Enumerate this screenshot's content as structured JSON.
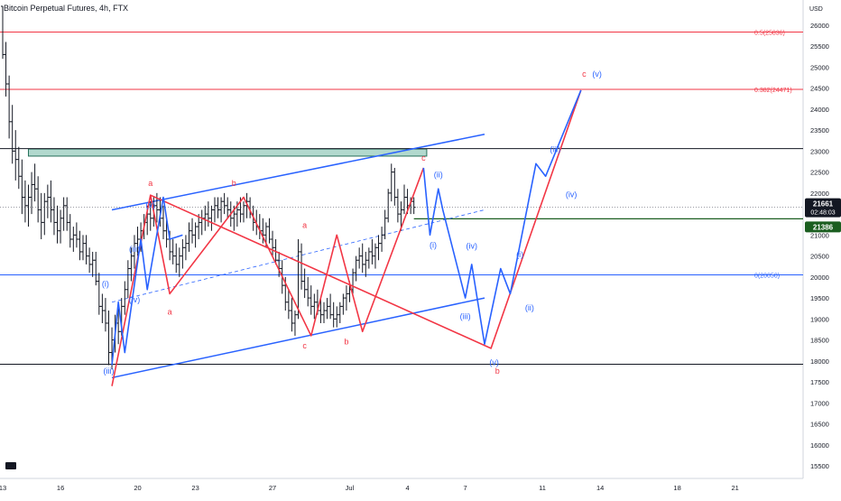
{
  "chart_data": {
    "type": "line",
    "title": "Bitcoin Perpetual Futures, 4h, FTX",
    "currency": "USD",
    "y_range": [
      15200,
      26600
    ],
    "y_ticks": [
      15500,
      16000,
      16500,
      17000,
      17500,
      18000,
      18500,
      19000,
      19500,
      20000,
      20500,
      21000,
      21500,
      22000,
      22500,
      23000,
      23500,
      24000,
      24500,
      25000,
      25500,
      26000
    ],
    "x_range": [
      0,
      90
    ],
    "x_ticks": [
      {
        "label": "13",
        "t": 0
      },
      {
        "label": "16",
        "t": 9
      },
      {
        "label": "20",
        "t": 21
      },
      {
        "label": "23",
        "t": 30
      },
      {
        "label": "27",
        "t": 42
      },
      {
        "label": "Jul",
        "t": 54
      },
      {
        "label": "4",
        "t": 63
      },
      {
        "label": "7",
        "t": 72
      },
      {
        "label": "11",
        "t": 84
      },
      {
        "label": "14",
        "t": 93
      },
      {
        "label": "18",
        "t": 105
      },
      {
        "label": "21",
        "t": 114
      }
    ],
    "colors": {
      "red": "#f23645",
      "blue": "#2962ff",
      "black": "#131722",
      "up_candle": "#131722",
      "down_candle": "#131722",
      "zone_fill": "#7fbfae",
      "zone_border": "#26705a",
      "green_line": "#1b5e20",
      "price_label_bg": "#131722",
      "green_label_bg": "#1b5e20"
    },
    "horizontal_levels": [
      {
        "price": 25836,
        "color": "red",
        "label": "0.5(25836)"
      },
      {
        "price": 24471,
        "color": "red",
        "label": "0.382(24471)"
      },
      {
        "price": 23060,
        "color": "black",
        "label": ""
      },
      {
        "price": 20050,
        "color": "blue",
        "label": "0(20050)"
      },
      {
        "price": 17920,
        "color": "black",
        "label": ""
      }
    ],
    "current_price": {
      "price": 21661,
      "label": "21661",
      "countdown": "02:48:03"
    },
    "green_level": {
      "price": 21386,
      "label": "21386"
    },
    "supply_zone": {
      "low": 22880,
      "high": 23050
    },
    "candles": [
      [
        0,
        26450,
        26450,
        25200,
        25300
      ],
      [
        0.5,
        25300,
        25600,
        24300,
        24600
      ],
      [
        1,
        24600,
        24800,
        23300,
        23700
      ],
      [
        1.5,
        23700,
        24100,
        22700,
        23000
      ],
      [
        2,
        23000,
        23500,
        22300,
        22800
      ],
      [
        2.5,
        22800,
        23100,
        22100,
        22400
      ],
      [
        3,
        22400,
        22800,
        21500,
        21900
      ],
      [
        3.5,
        21900,
        22300,
        21300,
        21700
      ],
      [
        4,
        21700,
        22200,
        21200,
        21900
      ],
      [
        4.5,
        21900,
        22500,
        21500,
        22200
      ],
      [
        5,
        22200,
        22700,
        21800,
        22100
      ],
      [
        5.5,
        22100,
        22400,
        21300,
        21600
      ],
      [
        6,
        21600,
        22000,
        20900,
        21300
      ],
      [
        6.5,
        21300,
        22000,
        21000,
        21800
      ],
      [
        7,
        21800,
        22200,
        21400,
        21900
      ],
      [
        7.5,
        21900,
        22300,
        21300,
        21600
      ],
      [
        8,
        21600,
        21900,
        21000,
        21300
      ],
      [
        8.5,
        21300,
        21700,
        20800,
        21100
      ],
      [
        9,
        21100,
        21600,
        20800,
        21400
      ],
      [
        9.5,
        21400,
        21900,
        21100,
        21700
      ],
      [
        10,
        21700,
        21900,
        21100,
        21300
      ],
      [
        10.5,
        21300,
        21500,
        20700,
        20900
      ],
      [
        11,
        20900,
        21200,
        20600,
        21000
      ],
      [
        11.5,
        21000,
        21300,
        20700,
        20900
      ],
      [
        12,
        20900,
        21100,
        20400,
        20600
      ],
      [
        12.5,
        20600,
        21000,
        20400,
        20800
      ],
      [
        13,
        20800,
        21000,
        20300,
        20500
      ],
      [
        13.5,
        20500,
        20700,
        20100,
        20300
      ],
      [
        14,
        20300,
        20600,
        20000,
        20400
      ],
      [
        14.5,
        20400,
        20600,
        19800,
        19900
      ],
      [
        15,
        19900,
        20100,
        19100,
        19300
      ],
      [
        15.5,
        19300,
        19600,
        18900,
        19200
      ],
      [
        16,
        19200,
        19500,
        18700,
        18900
      ],
      [
        16.5,
        18900,
        19200,
        17900,
        18200
      ],
      [
        17,
        18200,
        18800,
        17800,
        18500
      ],
      [
        17.5,
        18500,
        19100,
        18200,
        18900
      ],
      [
        18,
        18900,
        19300,
        18400,
        18700
      ],
      [
        18.5,
        18700,
        19500,
        18600,
        19300
      ],
      [
        19,
        19300,
        19900,
        19100,
        19700
      ],
      [
        19.5,
        19700,
        20400,
        19500,
        20200
      ],
      [
        20,
        20200,
        20700,
        19900,
        20500
      ],
      [
        20.5,
        20500,
        21000,
        20200,
        20800
      ],
      [
        21,
        20800,
        21200,
        20500,
        20900
      ],
      [
        21.5,
        20900,
        21300,
        20600,
        21100
      ],
      [
        22,
        21100,
        21500,
        20900,
        21300
      ],
      [
        22.5,
        21300,
        21700,
        21000,
        21500
      ],
      [
        23,
        21500,
        21800,
        21100,
        21400
      ],
      [
        23.5,
        21400,
        21900,
        21200,
        21700
      ],
      [
        24,
        21700,
        22000,
        21300,
        21600
      ],
      [
        24.5,
        21600,
        21900,
        21200,
        21400
      ],
      [
        25,
        21400,
        21700,
        20900,
        21100
      ],
      [
        25.5,
        21100,
        21400,
        20700,
        20900
      ],
      [
        26,
        20900,
        21100,
        20400,
        20600
      ],
      [
        26.5,
        20600,
        20900,
        20300,
        20500
      ],
      [
        27,
        20500,
        20800,
        20100,
        20300
      ],
      [
        27.5,
        20300,
        20700,
        20000,
        20500
      ],
      [
        28,
        20500,
        20900,
        20200,
        20700
      ],
      [
        28.5,
        20700,
        21000,
        20400,
        20800
      ],
      [
        29,
        20800,
        21300,
        20600,
        21100
      ],
      [
        29.5,
        21100,
        21400,
        20800,
        21000
      ],
      [
        30,
        21000,
        21300,
        20700,
        21200
      ],
      [
        30.5,
        21200,
        21500,
        20900,
        21300
      ],
      [
        31,
        21300,
        21600,
        21000,
        21400
      ],
      [
        31.5,
        21400,
        21700,
        21100,
        21500
      ],
      [
        32,
        21500,
        21800,
        21200,
        21400
      ],
      [
        32.5,
        21400,
        21700,
        21100,
        21600
      ],
      [
        33,
        21600,
        21900,
        21300,
        21700
      ],
      [
        33.5,
        21700,
        21900,
        21400,
        21600
      ],
      [
        34,
        21600,
        21900,
        21300,
        21800
      ],
      [
        34.5,
        21800,
        22000,
        21500,
        21700
      ],
      [
        35,
        21700,
        21900,
        21400,
        21600
      ],
      [
        35.5,
        21600,
        21800,
        21200,
        21400
      ],
      [
        36,
        21400,
        21700,
        21100,
        21500
      ],
      [
        36.5,
        21500,
        21800,
        21200,
        21600
      ],
      [
        37,
        21600,
        21900,
        21300,
        21500
      ],
      [
        37.5,
        21500,
        21800,
        21300,
        21700
      ],
      [
        38,
        21700,
        22000,
        21400,
        21800
      ],
      [
        38.5,
        21800,
        21900,
        21400,
        21500
      ],
      [
        39,
        21500,
        21700,
        21100,
        21300
      ],
      [
        39.5,
        21300,
        21600,
        21000,
        21200
      ],
      [
        40,
        21200,
        21500,
        20900,
        21100
      ],
      [
        40.5,
        21100,
        21400,
        20800,
        21000
      ],
      [
        41,
        21000,
        21300,
        20700,
        21200
      ],
      [
        41.5,
        21200,
        21400,
        20800,
        20900
      ],
      [
        42,
        20900,
        21100,
        20500,
        20700
      ],
      [
        42.5,
        20700,
        20900,
        20300,
        20400
      ],
      [
        43,
        20400,
        20600,
        20000,
        20200
      ],
      [
        43.5,
        20200,
        20400,
        19600,
        19800
      ],
      [
        44,
        19800,
        20000,
        19200,
        19400
      ],
      [
        44.5,
        19400,
        19700,
        19000,
        19200
      ],
      [
        45,
        19200,
        19500,
        18700,
        18900
      ],
      [
        45.5,
        18900,
        19200,
        18600,
        19100
      ],
      [
        46,
        19100,
        20900,
        19000,
        20600
      ],
      [
        46.5,
        20600,
        20800,
        19700,
        19900
      ],
      [
        47,
        19900,
        20200,
        19500,
        19700
      ],
      [
        47.5,
        19700,
        20000,
        19300,
        19500
      ],
      [
        48,
        19500,
        19800,
        19100,
        19300
      ],
      [
        48.5,
        19300,
        19600,
        19000,
        19400
      ],
      [
        49,
        19400,
        19700,
        19100,
        19200
      ],
      [
        49.5,
        19200,
        19500,
        18900,
        19100
      ],
      [
        50,
        19100,
        19400,
        18900,
        19200
      ],
      [
        50.5,
        19200,
        19500,
        19000,
        19300
      ],
      [
        51,
        19300,
        19600,
        19000,
        19100
      ],
      [
        51.5,
        19100,
        19400,
        18800,
        19000
      ],
      [
        52,
        19000,
        19300,
        18800,
        19100
      ],
      [
        52.5,
        19100,
        19400,
        18900,
        19300
      ],
      [
        53,
        19300,
        19600,
        19100,
        19500
      ],
      [
        53.5,
        19500,
        19800,
        19200,
        19600
      ],
      [
        54,
        19600,
        19900,
        19400,
        19700
      ],
      [
        54.5,
        19700,
        20200,
        19600,
        20100
      ],
      [
        55,
        20100,
        20500,
        19900,
        20400
      ],
      [
        55.5,
        20400,
        20700,
        20200,
        20500
      ],
      [
        56,
        20500,
        20800,
        20100,
        20300
      ],
      [
        56.5,
        20300,
        20600,
        20000,
        20400
      ],
      [
        57,
        20400,
        20700,
        20200,
        20600
      ],
      [
        57.5,
        20600,
        20900,
        20300,
        20500
      ],
      [
        58,
        20500,
        20800,
        20200,
        20700
      ],
      [
        58.5,
        20700,
        21000,
        20400,
        20800
      ],
      [
        59,
        20800,
        21200,
        20600,
        21000
      ],
      [
        59.5,
        21000,
        21600,
        20900,
        21400
      ],
      [
        60,
        21400,
        22100,
        21300,
        22000
      ],
      [
        60.5,
        22000,
        22700,
        21800,
        22500
      ],
      [
        61,
        22500,
        22600,
        21700,
        21900
      ],
      [
        61.5,
        21900,
        22100,
        21300,
        21500
      ],
      [
        62,
        21500,
        21800,
        21100,
        21600
      ],
      [
        62.5,
        21600,
        22200,
        21500,
        21900
      ],
      [
        63,
        21900,
        22100,
        21500,
        21700
      ],
      [
        63.5,
        21700,
        21900,
        21500,
        21800
      ],
      [
        64,
        21800,
        21900,
        21500,
        21660
      ]
    ],
    "red_structure": [
      {
        "points": [
          [
            17,
            17400
          ],
          [
            23,
            21950
          ],
          [
            26,
            19600
          ],
          [
            37.5,
            21900
          ],
          [
            48,
            18600
          ],
          [
            52,
            21000
          ],
          [
            56,
            18700
          ],
          [
            65.5,
            22600
          ]
        ]
      },
      {
        "points": [
          [
            23,
            21950
          ],
          [
            76,
            18300
          ],
          [
            90,
            24450
          ]
        ]
      }
    ],
    "blue_structure": [
      {
        "points": [
          [
            17,
            17900
          ],
          [
            18,
            19400
          ],
          [
            19,
            18200
          ],
          [
            21.5,
            20900
          ],
          [
            22.5,
            19700
          ],
          [
            25,
            21900
          ],
          [
            26,
            20900
          ],
          [
            28,
            21000
          ]
        ]
      },
      {
        "points": [
          [
            65.5,
            22600
          ],
          [
            66.5,
            21000
          ],
          [
            67.8,
            22100
          ],
          [
            68.5,
            21600
          ],
          [
            72,
            19500
          ],
          [
            73,
            20300
          ],
          [
            75,
            18400
          ],
          [
            77.5,
            20200
          ],
          [
            79,
            19600
          ],
          [
            83,
            22700
          ],
          [
            84.5,
            22400
          ],
          [
            90,
            24450
          ]
        ]
      }
    ],
    "channel_lines": [
      {
        "color": "blue",
        "dashed": false,
        "from": [
          17,
          21600
        ],
        "to": [
          75,
          23400
        ]
      },
      {
        "color": "blue",
        "dashed": false,
        "from": [
          17,
          17600
        ],
        "to": [
          75,
          19500
        ]
      },
      {
        "color": "blue",
        "dashed": true,
        "from": [
          17,
          19400
        ],
        "to": [
          75,
          21600
        ]
      }
    ],
    "wave_labels": [
      {
        "text": "a",
        "color": "red",
        "t": 23,
        "price": 22000,
        "pos": "above"
      },
      {
        "text": "(v)",
        "color": "blue",
        "t": 23,
        "price": 21950,
        "pos": "below"
      },
      {
        "text": "(iii)",
        "color": "blue",
        "t": 20.5,
        "price": 20900,
        "pos": "below"
      },
      {
        "text": "(iv)",
        "color": "blue",
        "t": 20.5,
        "price": 19700,
        "pos": "below"
      },
      {
        "text": "(i)",
        "color": "blue",
        "t": 16,
        "price": 19600,
        "pos": "above"
      },
      {
        "text": "(iii)",
        "color": "blue",
        "t": 16.5,
        "price": 18000,
        "pos": "below"
      },
      {
        "text": "a",
        "color": "red",
        "t": 26,
        "price": 19400,
        "pos": "below"
      },
      {
        "text": "b",
        "color": "red",
        "t": 36,
        "price": 22000,
        "pos": "above"
      },
      {
        "text": "a",
        "color": "red",
        "t": 47,
        "price": 21000,
        "pos": "above"
      },
      {
        "text": "c",
        "color": "red",
        "t": 47,
        "price": 18600,
        "pos": "below"
      },
      {
        "text": "b",
        "color": "red",
        "t": 53.5,
        "price": 18700,
        "pos": "below"
      },
      {
        "text": "c",
        "color": "red",
        "t": 65.5,
        "price": 22600,
        "pos": "above"
      },
      {
        "text": "(ii)",
        "color": "blue",
        "t": 67.8,
        "price": 22200,
        "pos": "above"
      },
      {
        "text": "(i)",
        "color": "blue",
        "t": 67,
        "price": 21000,
        "pos": "below"
      },
      {
        "text": "(iv)",
        "color": "blue",
        "t": 73,
        "price": 20500,
        "pos": "above"
      },
      {
        "text": "(iii)",
        "color": "blue",
        "t": 72,
        "price": 19300,
        "pos": "below"
      },
      {
        "text": "(v)",
        "color": "blue",
        "t": 76.5,
        "price": 18200,
        "pos": "below"
      },
      {
        "text": "b",
        "color": "red",
        "t": 77,
        "price": 18000,
        "pos": "below"
      },
      {
        "text": "(i)",
        "color": "blue",
        "t": 80.5,
        "price": 20300,
        "pos": "above"
      },
      {
        "text": "(ii)",
        "color": "blue",
        "t": 82,
        "price": 19500,
        "pos": "below"
      },
      {
        "text": "(iii)",
        "color": "blue",
        "t": 86,
        "price": 22800,
        "pos": "above"
      },
      {
        "text": "(iv)",
        "color": "blue",
        "t": 88.5,
        "price": 22200,
        "pos": "below"
      },
      {
        "text": "c",
        "color": "red",
        "t": 90.5,
        "price": 24600,
        "pos": "above"
      },
      {
        "text": "(v)",
        "color": "blue",
        "t": 92.5,
        "price": 24600,
        "pos": "above"
      }
    ]
  }
}
